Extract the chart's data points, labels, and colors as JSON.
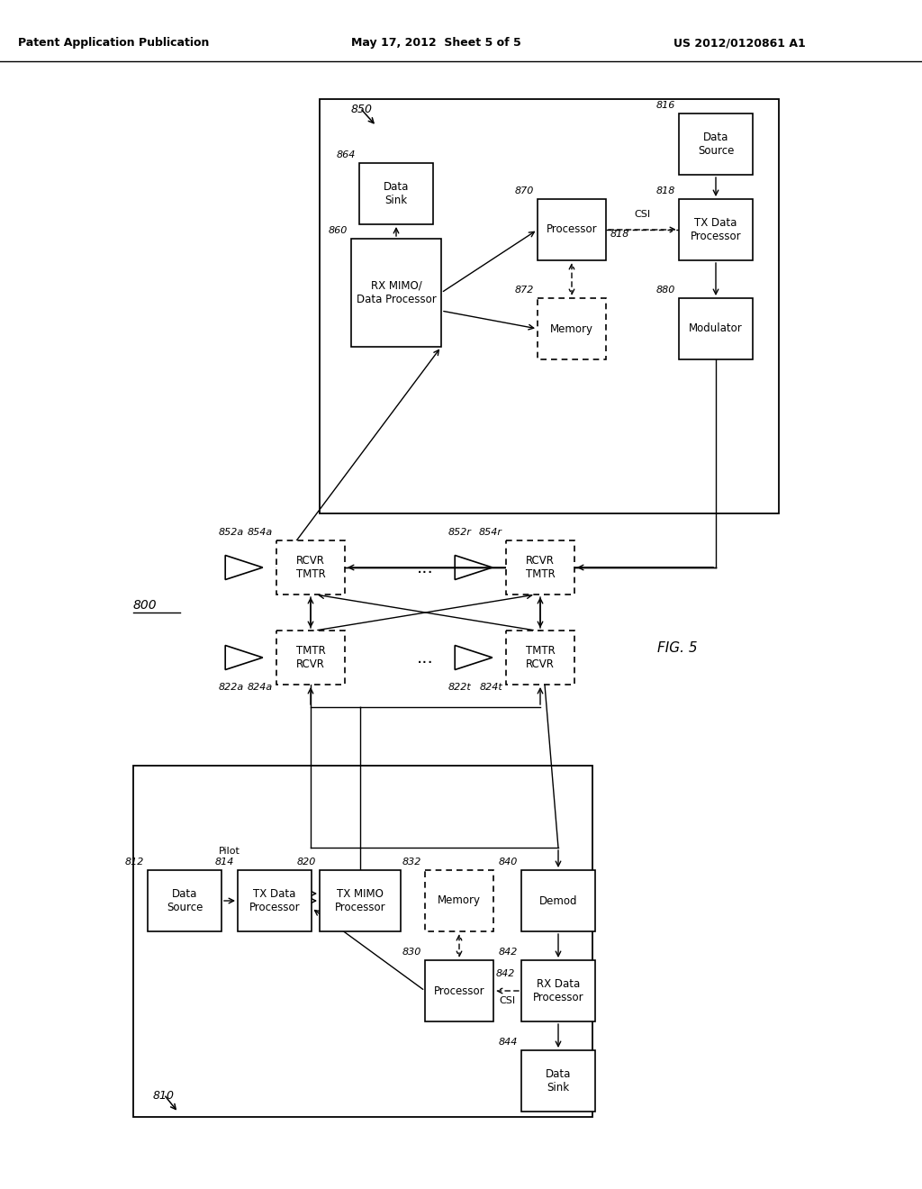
{
  "title_left": "Patent Application Publication",
  "title_mid": "May 17, 2012  Sheet 5 of 5",
  "title_right": "US 2012/0120861 A1",
  "fig_label": "FIG. 5",
  "background": "#ffffff"
}
